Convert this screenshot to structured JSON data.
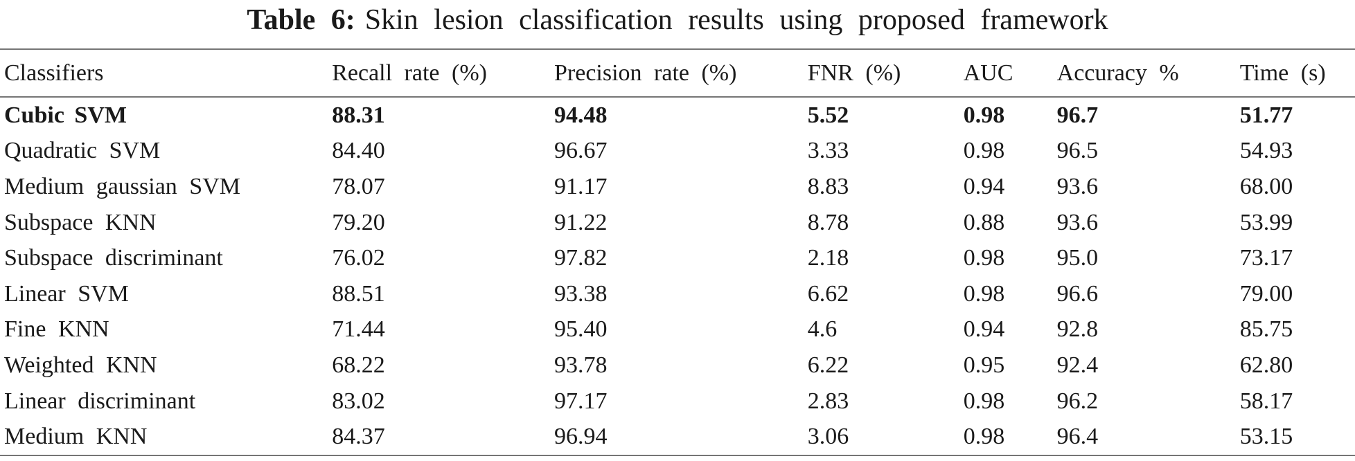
{
  "caption": {
    "label": "Table 6:",
    "text": "Skin lesion classification results using proposed framework"
  },
  "table": {
    "columns": [
      "Classifiers",
      "Recall rate (%)",
      "Precision rate (%)",
      "FNR (%)",
      "AUC",
      "Accuracy %",
      "Time (s)"
    ],
    "rows": [
      {
        "classifier": "Cubic SVM",
        "values": [
          "88.31",
          "94.48",
          "5.52",
          "0.98",
          "96.7",
          "51.77"
        ],
        "bold": true
      },
      {
        "classifier": "Quadratic SVM",
        "values": [
          "84.40",
          "96.67",
          "3.33",
          "0.98",
          "96.5",
          "54.93"
        ],
        "bold": false
      },
      {
        "classifier": "Medium gaussian SVM",
        "values": [
          "78.07",
          "91.17",
          "8.83",
          "0.94",
          "93.6",
          "68.00"
        ],
        "bold": false
      },
      {
        "classifier": "Subspace KNN",
        "values": [
          "79.20",
          "91.22",
          "8.78",
          "0.88",
          "93.6",
          "53.99"
        ],
        "bold": false
      },
      {
        "classifier": "Subspace discriminant",
        "values": [
          "76.02",
          "97.82",
          "2.18",
          "0.98",
          "95.0",
          "73.17"
        ],
        "bold": false
      },
      {
        "classifier": "Linear SVM",
        "values": [
          "88.51",
          "93.38",
          "6.62",
          "0.98",
          "96.6",
          "79.00"
        ],
        "bold": false
      },
      {
        "classifier": "Fine KNN",
        "values": [
          "71.44",
          "95.40",
          "4.6",
          "0.94",
          "92.8",
          "85.75"
        ],
        "bold": false
      },
      {
        "classifier": "Weighted KNN",
        "values": [
          "68.22",
          "93.78",
          "6.22",
          "0.95",
          "92.4",
          "62.80"
        ],
        "bold": false
      },
      {
        "classifier": "Linear discriminant",
        "values": [
          "83.02",
          "97.17",
          "2.83",
          "0.98",
          "96.2",
          "58.17"
        ],
        "bold": false
      },
      {
        "classifier": "Medium KNN",
        "values": [
          "84.37",
          "96.94",
          "3.06",
          "0.98",
          "96.4",
          "53.15"
        ],
        "bold": false
      }
    ]
  },
  "colors": {
    "text": "#1a1a1a",
    "rule": "#757575",
    "background": "#ffffff"
  }
}
